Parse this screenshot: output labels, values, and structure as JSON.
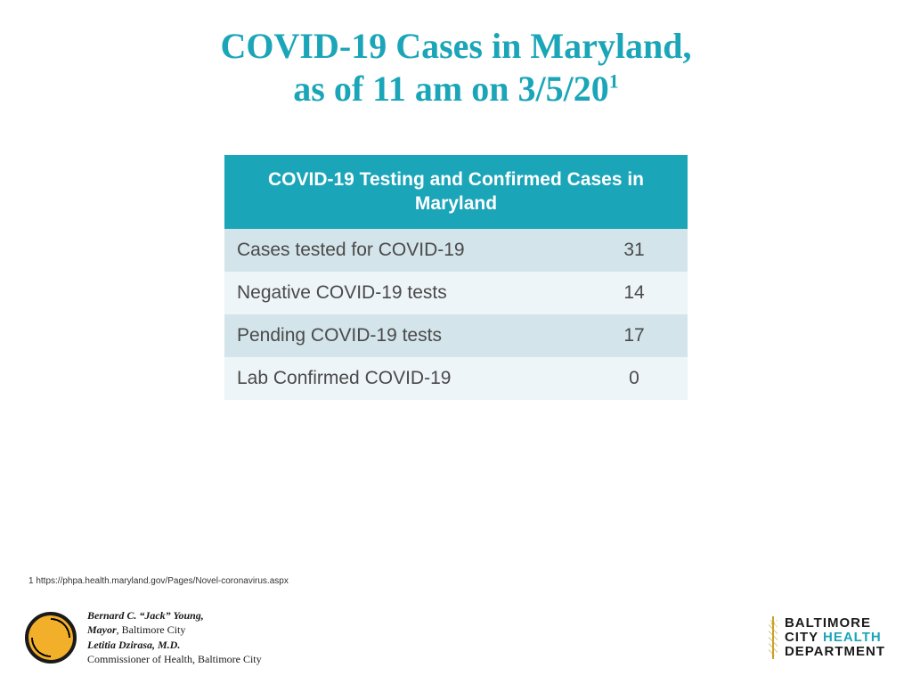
{
  "title": {
    "line1": "COVID-19 Cases in Maryland,",
    "line2": "as of 11 am on 3/5/20",
    "sup": "1",
    "color": "#1ba5b8",
    "fontsize": 40
  },
  "table": {
    "header": "COVID-19 Testing and Confirmed Cases in Maryland",
    "header_bg": "#1ba5b8",
    "header_color": "#ffffff",
    "header_fontsize": 21,
    "row_fontsize": 21,
    "row_even_bg": "#d3e4ea",
    "row_odd_bg": "#eef5f8",
    "text_color": "#4a4a4a",
    "rows": [
      {
        "label": "Cases tested for COVID-19",
        "value": "31"
      },
      {
        "label": "Negative COVID-19 tests",
        "value": "14"
      },
      {
        "label": "Pending COVID-19 tests",
        "value": "17"
      },
      {
        "label": "Lab Confirmed COVID-19",
        "value": "0"
      }
    ]
  },
  "footnote": "1 https://phpa.health.maryland.gov/Pages/Novel-coronavirus.aspx",
  "credits": {
    "line1_name": "Bernard C. “Jack” Young,",
    "line1_role": "Mayor",
    "line1_rest": ", Baltimore City",
    "line2_name": "Letitia Dzirasa, M.D.",
    "line3": "Commissioner of Health, Baltimore City"
  },
  "dept_logo": {
    "line1": "BALTIMORE",
    "line2a": "CITY ",
    "line2b": "HEALTH",
    "line3": "DEPARTMENT",
    "accent_color": "#1ba5b8"
  }
}
